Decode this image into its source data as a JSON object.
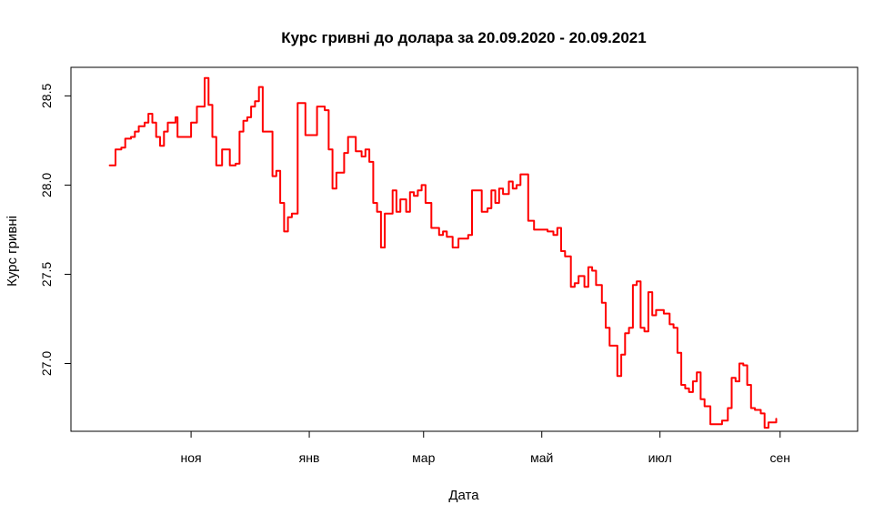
{
  "chart_data": {
    "type": "line",
    "title": "Курс гривні до долара за 20.09.2020 - 20.09.2021",
    "xlabel": "Дата",
    "ylabel": "Курс гривні",
    "xlim": [
      "2020-08-31",
      "2021-10-11"
    ],
    "ylim": [
      26.62,
      28.66
    ],
    "x_ticks": [
      {
        "date": "2020-11-01",
        "label": "ноя"
      },
      {
        "date": "2021-01-01",
        "label": "янв"
      },
      {
        "date": "2021-03-01",
        "label": "мар"
      },
      {
        "date": "2021-05-01",
        "label": "май"
      },
      {
        "date": "2021-07-01",
        "label": "июл"
      },
      {
        "date": "2021-09-01",
        "label": "сен"
      }
    ],
    "y_ticks": [
      {
        "value": 27.0,
        "label": "27.0"
      },
      {
        "value": 27.5,
        "label": "27.5"
      },
      {
        "value": 28.0,
        "label": "28.0"
      },
      {
        "value": 28.5,
        "label": "28.5"
      }
    ],
    "grid": false,
    "line_color": "#ff0000",
    "series": [
      {
        "values": [
          [
            "2020-09-20",
            28.11
          ],
          [
            "2020-09-23",
            28.2
          ],
          [
            "2020-09-26",
            28.21
          ],
          [
            "2020-09-28",
            28.26
          ],
          [
            "2020-10-01",
            28.27
          ],
          [
            "2020-10-03",
            28.3
          ],
          [
            "2020-10-05",
            28.33
          ],
          [
            "2020-10-08",
            28.35
          ],
          [
            "2020-10-10",
            28.4
          ],
          [
            "2020-10-12",
            28.35
          ],
          [
            "2020-10-14",
            28.27
          ],
          [
            "2020-10-16",
            28.22
          ],
          [
            "2020-10-18",
            28.3
          ],
          [
            "2020-10-20",
            28.35
          ],
          [
            "2020-10-22",
            28.35
          ],
          [
            "2020-10-24",
            28.38
          ],
          [
            "2020-10-25",
            28.27
          ],
          [
            "2020-10-29",
            28.27
          ],
          [
            "2020-11-01",
            28.35
          ],
          [
            "2020-11-04",
            28.44
          ],
          [
            "2020-11-06",
            28.44
          ],
          [
            "2020-11-08",
            28.6
          ],
          [
            "2020-11-10",
            28.45
          ],
          [
            "2020-11-12",
            28.27
          ],
          [
            "2020-11-14",
            28.11
          ],
          [
            "2020-11-17",
            28.2
          ],
          [
            "2020-11-19",
            28.2
          ],
          [
            "2020-11-21",
            28.11
          ],
          [
            "2020-11-24",
            28.12
          ],
          [
            "2020-11-26",
            28.3
          ],
          [
            "2020-11-28",
            28.36
          ],
          [
            "2020-11-30",
            28.38
          ],
          [
            "2020-12-02",
            28.44
          ],
          [
            "2020-12-04",
            28.47
          ],
          [
            "2020-12-06",
            28.55
          ],
          [
            "2020-12-08",
            28.3
          ],
          [
            "2020-12-10",
            28.3
          ],
          [
            "2020-12-13",
            28.05
          ],
          [
            "2020-12-15",
            28.08
          ],
          [
            "2020-12-17",
            27.9
          ],
          [
            "2020-12-19",
            27.74
          ],
          [
            "2020-12-21",
            27.82
          ],
          [
            "2020-12-23",
            27.84
          ],
          [
            "2020-12-26",
            28.46
          ],
          [
            "2020-12-28",
            28.46
          ],
          [
            "2020-12-30",
            28.28
          ],
          [
            "2021-01-04",
            28.28
          ],
          [
            "2021-01-05",
            28.44
          ],
          [
            "2021-01-09",
            28.42
          ],
          [
            "2021-01-11",
            28.2
          ],
          [
            "2021-01-13",
            27.98
          ],
          [
            "2021-01-15",
            28.07
          ],
          [
            "2021-01-17",
            28.07
          ],
          [
            "2021-01-19",
            28.18
          ],
          [
            "2021-01-21",
            28.27
          ],
          [
            "2021-01-23",
            28.27
          ],
          [
            "2021-01-25",
            28.19
          ],
          [
            "2021-01-28",
            28.16
          ],
          [
            "2021-01-30",
            28.2
          ],
          [
            "2021-02-01",
            28.13
          ],
          [
            "2021-02-03",
            27.9
          ],
          [
            "2021-02-05",
            27.85
          ],
          [
            "2021-02-07",
            27.65
          ],
          [
            "2021-02-09",
            27.84
          ],
          [
            "2021-02-11",
            27.84
          ],
          [
            "2021-02-13",
            27.97
          ],
          [
            "2021-02-15",
            27.85
          ],
          [
            "2021-02-17",
            27.92
          ],
          [
            "2021-02-20",
            27.85
          ],
          [
            "2021-02-22",
            27.96
          ],
          [
            "2021-02-24",
            27.94
          ],
          [
            "2021-02-26",
            27.97
          ],
          [
            "2021-02-28",
            28.0
          ],
          [
            "2021-03-02",
            27.9
          ],
          [
            "2021-03-05",
            27.76
          ],
          [
            "2021-03-07",
            27.76
          ],
          [
            "2021-03-09",
            27.72
          ],
          [
            "2021-03-11",
            27.74
          ],
          [
            "2021-03-13",
            27.71
          ],
          [
            "2021-03-16",
            27.65
          ],
          [
            "2021-03-19",
            27.7
          ],
          [
            "2021-03-22",
            27.7
          ],
          [
            "2021-03-24",
            27.72
          ],
          [
            "2021-03-26",
            27.97
          ],
          [
            "2021-03-29",
            27.97
          ],
          [
            "2021-03-31",
            27.85
          ],
          [
            "2021-04-03",
            27.87
          ],
          [
            "2021-04-05",
            27.97
          ],
          [
            "2021-04-07",
            27.9
          ],
          [
            "2021-04-09",
            27.98
          ],
          [
            "2021-04-11",
            27.95
          ],
          [
            "2021-04-14",
            28.02
          ],
          [
            "2021-04-16",
            27.98
          ],
          [
            "2021-04-18",
            28.0
          ],
          [
            "2021-04-20",
            28.06
          ],
          [
            "2021-04-22",
            28.06
          ],
          [
            "2021-04-24",
            27.8
          ],
          [
            "2021-04-27",
            27.75
          ],
          [
            "2021-05-01",
            27.75
          ],
          [
            "2021-05-04",
            27.74
          ],
          [
            "2021-05-07",
            27.72
          ],
          [
            "2021-05-09",
            27.76
          ],
          [
            "2021-05-11",
            27.63
          ],
          [
            "2021-05-13",
            27.6
          ],
          [
            "2021-05-16",
            27.43
          ],
          [
            "2021-05-18",
            27.45
          ],
          [
            "2021-05-20",
            27.49
          ],
          [
            "2021-05-23",
            27.43
          ],
          [
            "2021-05-25",
            27.54
          ],
          [
            "2021-05-27",
            27.52
          ],
          [
            "2021-05-29",
            27.44
          ],
          [
            "2021-06-01",
            27.34
          ],
          [
            "2021-06-03",
            27.2
          ],
          [
            "2021-06-05",
            27.1
          ],
          [
            "2021-06-07",
            27.1
          ],
          [
            "2021-06-09",
            26.93
          ],
          [
            "2021-06-11",
            27.05
          ],
          [
            "2021-06-13",
            27.17
          ],
          [
            "2021-06-15",
            27.2
          ],
          [
            "2021-06-17",
            27.44
          ],
          [
            "2021-06-19",
            27.46
          ],
          [
            "2021-06-21",
            27.2
          ],
          [
            "2021-06-23",
            27.18
          ],
          [
            "2021-06-25",
            27.4
          ],
          [
            "2021-06-27",
            27.27
          ],
          [
            "2021-06-29",
            27.3
          ],
          [
            "2021-07-01",
            27.3
          ],
          [
            "2021-07-03",
            27.28
          ],
          [
            "2021-07-06",
            27.22
          ],
          [
            "2021-07-08",
            27.2
          ],
          [
            "2021-07-10",
            27.06
          ],
          [
            "2021-07-12",
            26.88
          ],
          [
            "2021-07-14",
            26.86
          ],
          [
            "2021-07-16",
            26.84
          ],
          [
            "2021-07-18",
            26.9
          ],
          [
            "2021-07-20",
            26.95
          ],
          [
            "2021-07-22",
            26.8
          ],
          [
            "2021-07-24",
            26.76
          ],
          [
            "2021-07-27",
            26.66
          ],
          [
            "2021-07-30",
            26.66
          ],
          [
            "2021-08-02",
            26.68
          ],
          [
            "2021-08-05",
            26.75
          ],
          [
            "2021-08-07",
            26.92
          ],
          [
            "2021-08-09",
            26.9
          ],
          [
            "2021-08-11",
            27.0
          ],
          [
            "2021-08-13",
            26.99
          ],
          [
            "2021-08-15",
            26.88
          ],
          [
            "2021-08-17",
            26.75
          ],
          [
            "2021-08-19",
            26.74
          ],
          [
            "2021-08-22",
            26.72
          ],
          [
            "2021-08-24",
            26.64
          ],
          [
            "2021-08-26",
            26.67
          ],
          [
            "2021-08-28",
            26.67
          ],
          [
            "2021-08-30",
            26.69
          ]
        ]
      }
    ]
  }
}
